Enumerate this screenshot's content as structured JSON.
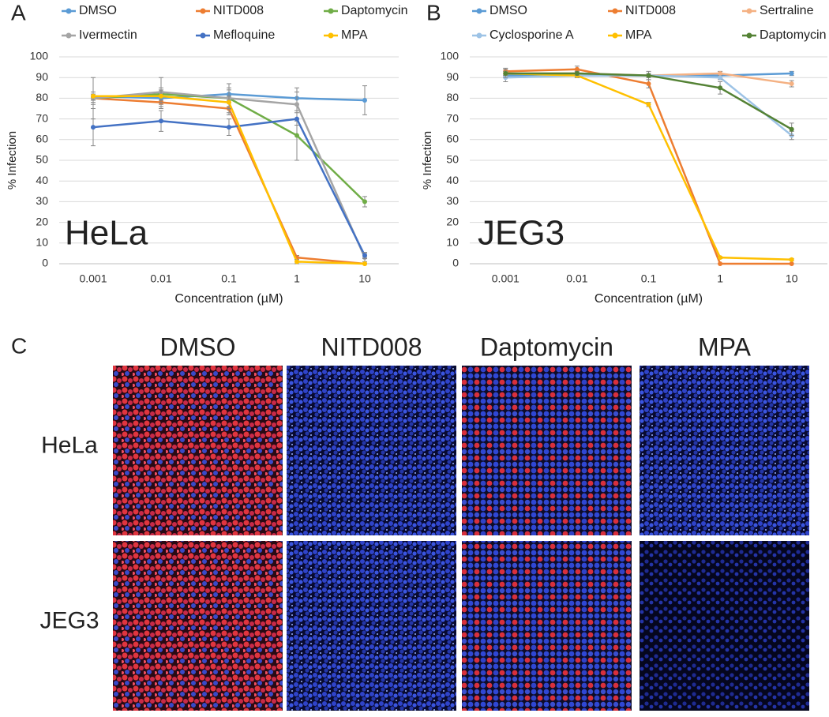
{
  "chart_data": [
    {
      "type": "line",
      "panel_label": "A",
      "annotation": "HeLa",
      "x_label": "Concentration (µM)",
      "y_label": "% Infection",
      "categories": [
        "0.001",
        "0.01",
        "0.1",
        "1",
        "10"
      ],
      "ylim": [
        0,
        100
      ],
      "yticks": [
        0,
        10,
        20,
        30,
        40,
        50,
        60,
        70,
        80,
        90,
        100
      ],
      "grid": true,
      "series": [
        {
          "name": "DMSO",
          "color": "#5b9bd5",
          "values": [
            81,
            80,
            82,
            80,
            79
          ],
          "errors": [
            2,
            3,
            3,
            3,
            7
          ]
        },
        {
          "name": "NITD008",
          "color": "#ed7d31",
          "values": [
            80,
            78,
            75,
            3,
            0
          ],
          "errors": [
            2,
            3,
            3,
            1,
            0
          ]
        },
        {
          "name": "Daptomycin",
          "color": "#70ad47",
          "values": [
            80,
            82,
            80,
            62,
            30
          ],
          "errors": [
            3,
            3,
            4,
            12,
            2.5
          ]
        },
        {
          "name": "Ivermectin",
          "color": "#a5a5a5",
          "values": [
            80,
            83,
            80,
            77,
            3
          ],
          "errors": [
            10,
            7,
            7,
            8,
            2
          ]
        },
        {
          "name": "Mefloquine",
          "color": "#4472c4",
          "values": [
            66,
            69,
            66,
            70,
            4
          ],
          "errors": [
            9,
            5,
            4,
            3,
            1.5
          ]
        },
        {
          "name": "MPA",
          "color": "#ffc000",
          "values": [
            81,
            81,
            78,
            1,
            0
          ],
          "errors": [
            2,
            3,
            3,
            1,
            0
          ]
        }
      ]
    },
    {
      "type": "line",
      "panel_label": "B",
      "annotation": "JEG3",
      "x_label": "Concentration (µM)",
      "y_label": "% Infection",
      "categories": [
        "0.001",
        "0.01",
        "0.1",
        "1",
        "10"
      ],
      "ylim": [
        0,
        100
      ],
      "yticks": [
        0,
        10,
        20,
        30,
        40,
        50,
        60,
        70,
        80,
        90,
        100
      ],
      "grid": true,
      "series": [
        {
          "name": "DMSO",
          "color": "#5b9bd5",
          "values": [
            91,
            91,
            91,
            91,
            92
          ],
          "errors": [
            1,
            1,
            1,
            1,
            1
          ]
        },
        {
          "name": "NITD008",
          "color": "#ed7d31",
          "values": [
            93,
            94,
            87,
            0,
            0
          ],
          "errors": [
            1.5,
            1.5,
            2,
            0,
            0
          ]
        },
        {
          "name": "Sertraline",
          "color": "#f4b183",
          "values": [
            92,
            92,
            91,
            92,
            87
          ],
          "errors": [
            1,
            1,
            1,
            1,
            1.5
          ]
        },
        {
          "name": "Cyclosporine A",
          "color": "#9dc3e6",
          "values": [
            90,
            91,
            91,
            90,
            62
          ],
          "errors": [
            2,
            1,
            1,
            1,
            2
          ]
        },
        {
          "name": "MPA",
          "color": "#ffc000",
          "values": [
            92,
            91,
            77,
            3,
            2
          ],
          "errors": [
            1,
            1,
            1,
            0.5,
            0.5
          ]
        },
        {
          "name": "Daptomycin",
          "color": "#548235",
          "values": [
            92,
            92,
            91,
            85,
            65
          ],
          "errors": [
            2,
            1,
            2,
            3,
            3
          ]
        }
      ]
    }
  ],
  "image_panel": {
    "panel_label": "C",
    "columns": [
      "DMSO",
      "NITD008",
      "Daptomycin",
      "MPA"
    ],
    "rows": [
      "HeLa",
      "JEG3"
    ]
  }
}
